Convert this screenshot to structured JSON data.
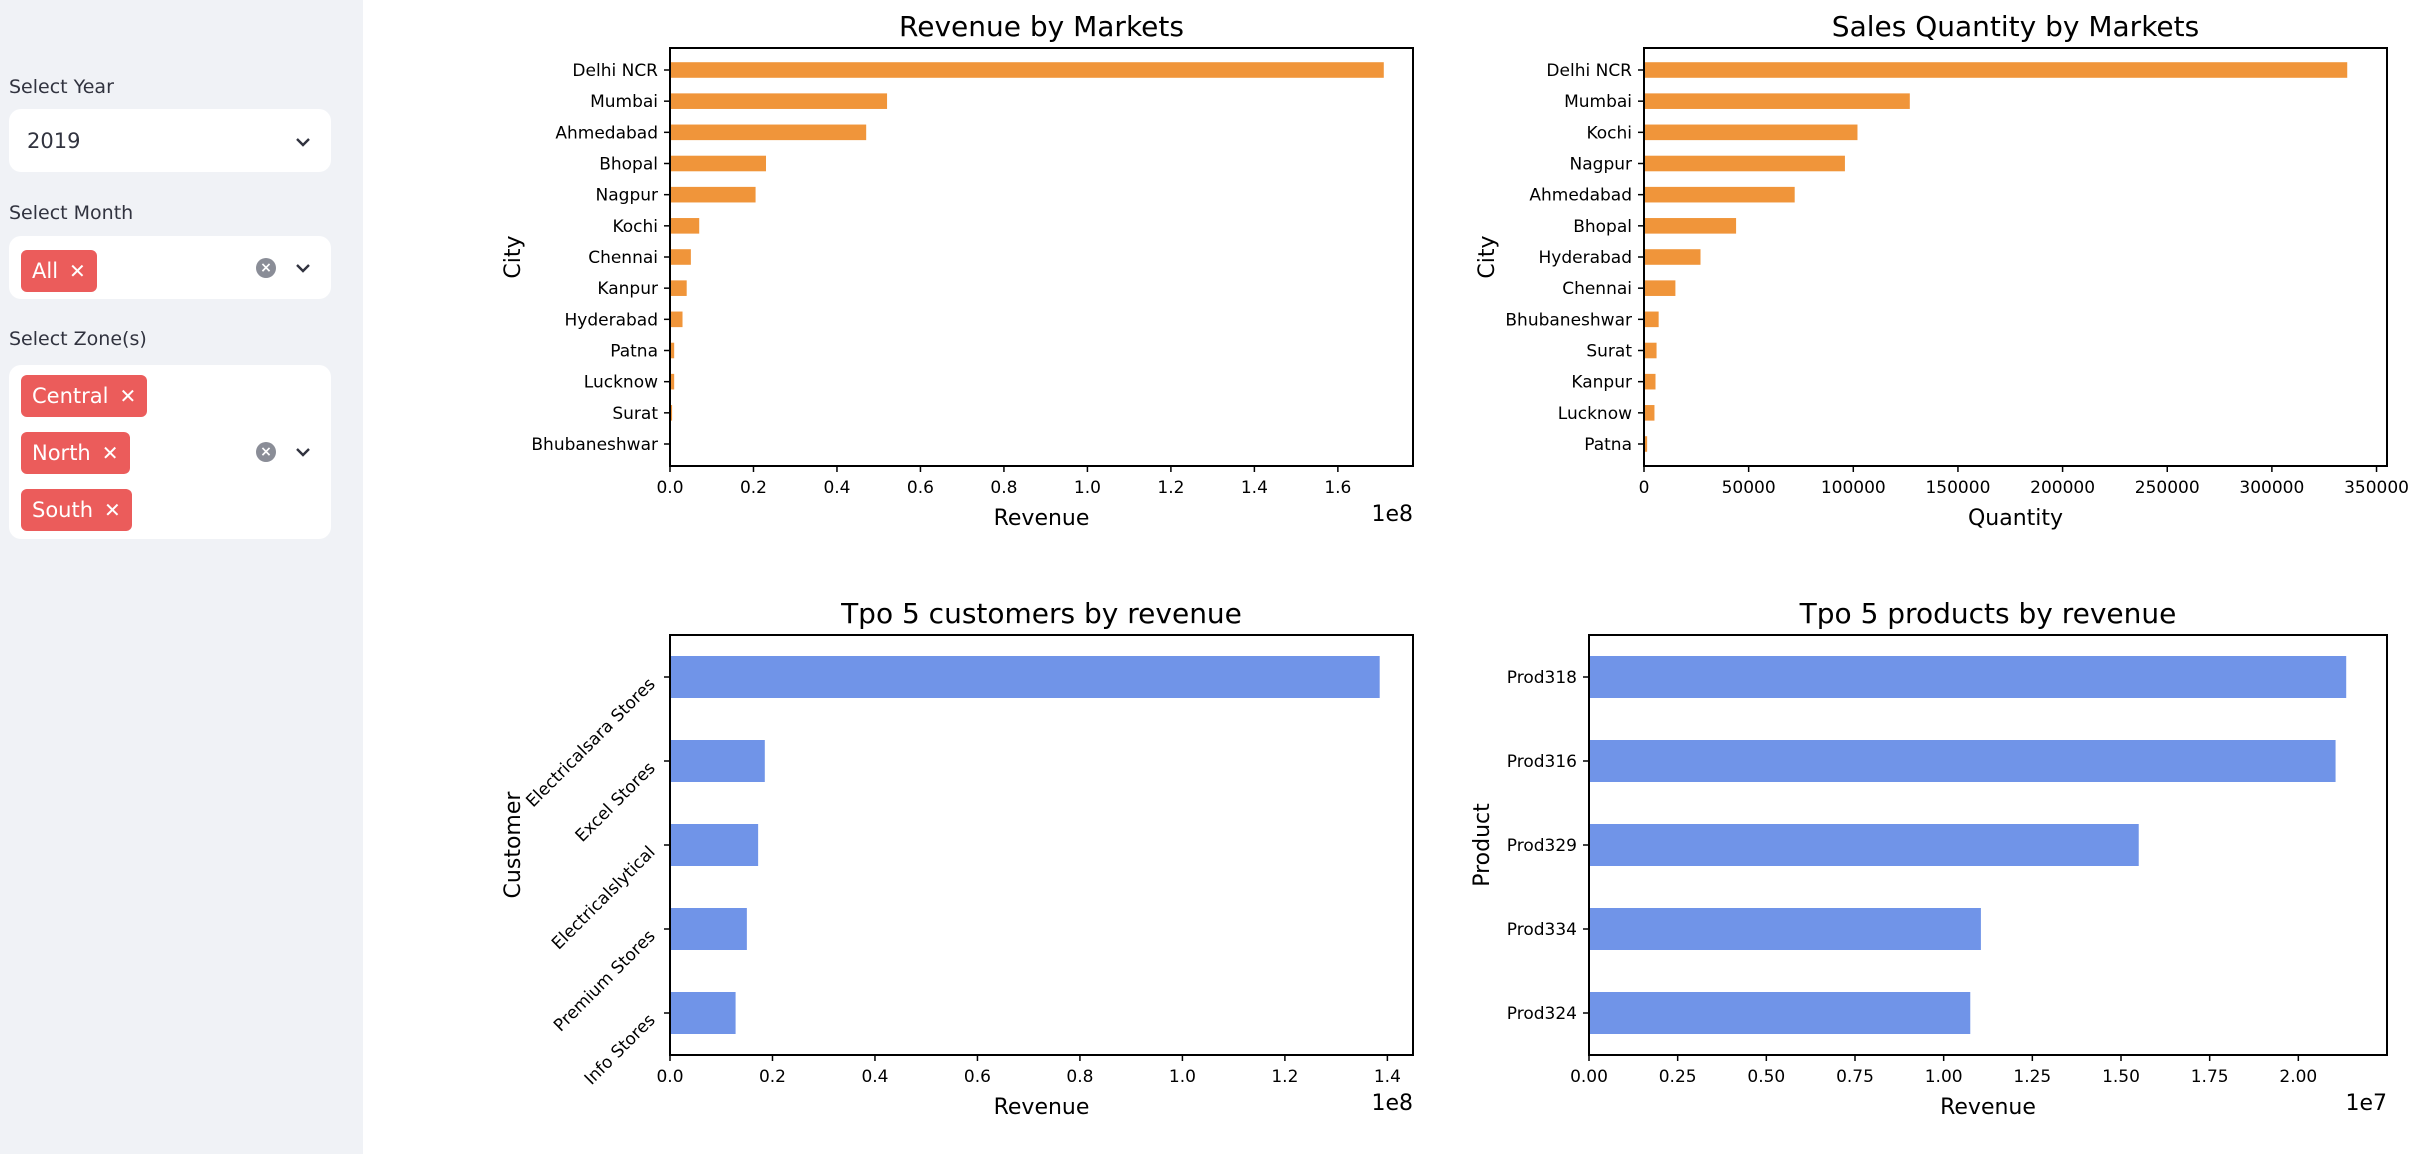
{
  "sidebar": {
    "year": {
      "label": "Select Year",
      "value": "2019"
    },
    "month": {
      "label": "Select Month",
      "tags": [
        "All"
      ]
    },
    "zone": {
      "label": "Select Zone(s)",
      "tags": [
        "Central",
        "North",
        "South"
      ]
    }
  },
  "chart_data": [
    {
      "type": "bar",
      "orientation": "horizontal",
      "title": "Revenue by Markets",
      "xlabel": "Revenue",
      "ylabel": "City",
      "offset_label": "1e8",
      "xlim": [
        0,
        1.78
      ],
      "xticks": [
        "0.0",
        "0.2",
        "0.4",
        "0.6",
        "0.8",
        "1.0",
        "1.2",
        "1.4",
        "1.6"
      ],
      "categories": [
        "Delhi NCR",
        "Mumbai",
        "Ahmedabad",
        "Bhopal",
        "Nagpur",
        "Kochi",
        "Chennai",
        "Kanpur",
        "Hyderabad",
        "Patna",
        "Lucknow",
        "Surat",
        "Bhubaneshwar"
      ],
      "values": [
        1.71,
        0.52,
        0.47,
        0.23,
        0.205,
        0.07,
        0.05,
        0.04,
        0.03,
        0.01,
        0.01,
        0.005,
        0.002
      ],
      "color": "#f0953a"
    },
    {
      "type": "bar",
      "orientation": "horizontal",
      "title": "Sales Quantity by Markets",
      "xlabel": "Quantity",
      "ylabel": "City",
      "xlim": [
        0,
        355000
      ],
      "xticks": [
        "0",
        "50000",
        "100000",
        "150000",
        "200000",
        "250000",
        "300000",
        "350000"
      ],
      "categories": [
        "Delhi NCR",
        "Mumbai",
        "Kochi",
        "Nagpur",
        "Ahmedabad",
        "Bhopal",
        "Hyderabad",
        "Chennai",
        "Bhubaneshwar",
        "Surat",
        "Kanpur",
        "Lucknow",
        "Patna"
      ],
      "values": [
        336000,
        127000,
        102000,
        96000,
        72000,
        44000,
        27000,
        15000,
        7000,
        6000,
        5500,
        5000,
        1500
      ],
      "color": "#f0953a"
    },
    {
      "type": "bar",
      "orientation": "horizontal",
      "title": "Tpo 5 customers by revenue",
      "xlabel": "Revenue",
      "ylabel": "Customer",
      "offset_label": "1e8",
      "xlim": [
        0,
        1.45
      ],
      "xticks": [
        "0.0",
        "0.2",
        "0.4",
        "0.6",
        "0.8",
        "1.0",
        "1.2",
        "1.4"
      ],
      "categories": [
        "Electricalsara Stores",
        "Excel Stores",
        "Electricalslytical",
        "Premium Stores",
        "Info Stores"
      ],
      "values": [
        1.385,
        0.185,
        0.172,
        0.15,
        0.128
      ],
      "color": "#7094e8",
      "rotated_labels": true
    },
    {
      "type": "bar",
      "orientation": "horizontal",
      "title": "Tpo 5 products by revenue",
      "xlabel": "Revenue",
      "ylabel": "Product",
      "offset_label": "1e7",
      "xlim": [
        0,
        2.25
      ],
      "xticks": [
        "0.00",
        "0.25",
        "0.50",
        "0.75",
        "1.00",
        "1.25",
        "1.50",
        "1.75",
        "2.00"
      ],
      "categories": [
        "Prod318",
        "Prod316",
        "Prod329",
        "Prod334",
        "Prod324"
      ],
      "values": [
        2.135,
        2.105,
        1.55,
        1.105,
        1.075
      ],
      "color": "#7094e8"
    }
  ]
}
